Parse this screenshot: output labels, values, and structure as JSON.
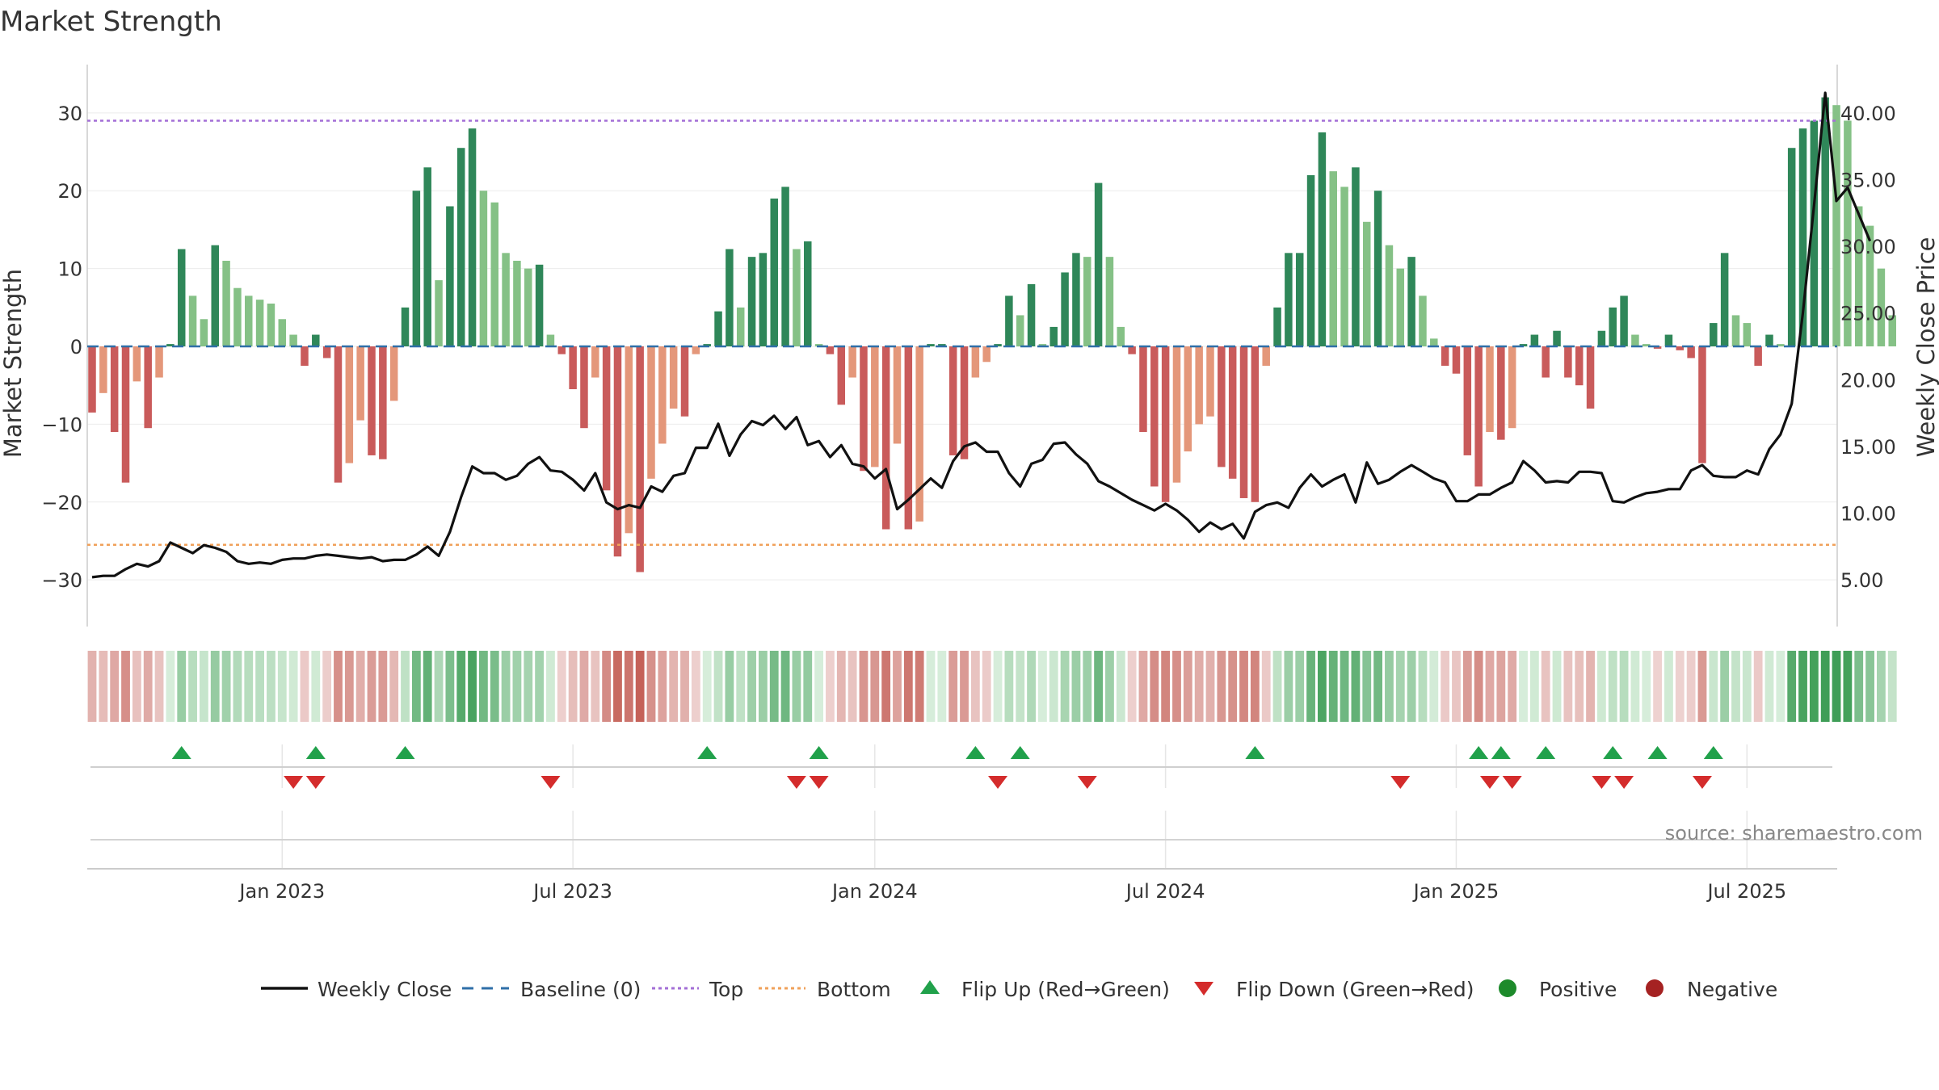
{
  "chart_data": {
    "type": "bar",
    "title": "Market Strength",
    "ylabel": "Market Strength",
    "y2label": "Weekly Close Price",
    "ylim": [
      -36,
      36
    ],
    "y2lim": [
      1.5,
      43.5
    ],
    "yticks": [
      {
        "v": 30,
        "t": "30"
      },
      {
        "v": 20,
        "t": "20"
      },
      {
        "v": 10,
        "t": "10"
      },
      {
        "v": 0,
        "t": "0"
      },
      {
        "v": -10,
        "t": "−10"
      },
      {
        "v": -20,
        "t": "−20"
      },
      {
        "v": -30,
        "t": "−30"
      }
    ],
    "y2ticks": [
      {
        "v": 40,
        "t": "40.00"
      },
      {
        "v": 35,
        "t": "35.00"
      },
      {
        "v": 30,
        "t": "30.00"
      },
      {
        "v": 25,
        "t": "25.00"
      },
      {
        "v": 20,
        "t": "20.00"
      },
      {
        "v": 15,
        "t": "15.00"
      },
      {
        "v": 10,
        "t": "10.00"
      },
      {
        "v": 5,
        "t": "5.00"
      }
    ],
    "xticks": [
      {
        "i": 17,
        "t": "Jan 2023"
      },
      {
        "i": 43,
        "t": "Jul 2023"
      },
      {
        "i": 70,
        "t": "Jan 2024"
      },
      {
        "i": 96,
        "t": "Jul 2024"
      },
      {
        "i": 122,
        "t": "Jan 2025"
      },
      {
        "i": 148,
        "t": "Jul 2025"
      }
    ],
    "top_line": 29,
    "bottom_line": -25.5,
    "strength": [
      -8.5,
      -6,
      -11,
      -17.5,
      -4.5,
      -10.5,
      -4,
      0.3,
      12.5,
      6.5,
      3.5,
      13,
      11,
      7.5,
      6.5,
      6,
      5.5,
      3.5,
      1.5,
      -2.5,
      1.5,
      -1.5,
      -17.5,
      -15,
      -9.5,
      -14,
      -14.5,
      -7,
      5,
      20,
      23,
      8.5,
      18,
      25.5,
      28,
      20,
      18.5,
      12,
      11,
      10,
      10.5,
      1.5,
      -1,
      -5.5,
      -10.5,
      -4,
      -18.5,
      -27,
      -24,
      -29,
      -17,
      -12.5,
      -8,
      -9,
      -1,
      0.3,
      4.5,
      12.5,
      5,
      11.5,
      12,
      19,
      20.5,
      12.5,
      13.5,
      0.3,
      -1,
      -7.5,
      -4,
      -16,
      -15.5,
      -23.5,
      -12.5,
      -23.5,
      -22.5,
      0.3,
      0.3,
      -14,
      -14.5,
      -4,
      -2,
      0.3,
      6.5,
      4,
      8,
      0.3,
      2.5,
      9.5,
      12,
      11.5,
      21,
      11.5,
      2.5,
      -1,
      -11,
      -18,
      -20,
      -17.5,
      -13.5,
      -10,
      -9,
      -15.5,
      -17,
      -19.5,
      -20,
      -2.5,
      5,
      12,
      12,
      22,
      27.5,
      22.5,
      20.5,
      23,
      16,
      20,
      13,
      10,
      11.5,
      6.5,
      1,
      -2.5,
      -3.5,
      -14,
      -18,
      -11,
      -12,
      -10.5,
      0.3,
      1.5,
      -4,
      2,
      -4,
      -5,
      -8,
      2,
      5,
      6.5,
      1.5,
      0.3,
      -0.3,
      1.5,
      -0.5,
      -1.5,
      -15,
      3,
      12,
      4,
      3,
      -2.5,
      1.5,
      0.3,
      25.5,
      28,
      29,
      32,
      31,
      29,
      18,
      15.5,
      10,
      4
    ],
    "close": [
      5.2,
      5.3,
      5.3,
      5.8,
      6.2,
      6.0,
      6.4,
      7.8,
      7.4,
      7.0,
      7.6,
      7.4,
      7.1,
      6.4,
      6.2,
      6.3,
      6.2,
      6.5,
      6.6,
      6.6,
      6.8,
      6.9,
      6.8,
      6.7,
      6.6,
      6.7,
      6.4,
      6.5,
      6.5,
      6.9,
      7.5,
      6.8,
      8.6,
      11.2,
      13.5,
      13.0,
      13.0,
      12.5,
      12.8,
      13.7,
      14.2,
      13.2,
      13.1,
      12.5,
      11.7,
      13.0,
      10.8,
      10.3,
      10.6,
      10.4,
      12.0,
      11.6,
      12.8,
      13.0,
      14.9,
      14.9,
      16.7,
      14.3,
      15.9,
      16.9,
      16.6,
      17.3,
      16.3,
      17.2,
      15.1,
      15.4,
      14.2,
      15.1,
      13.7,
      13.5,
      12.6,
      13.3,
      10.3,
      11.0,
      11.8,
      12.6,
      11.9,
      13.9,
      15.0,
      15.3,
      14.6,
      14.6,
      13.0,
      12.0,
      13.7,
      14.0,
      15.2,
      15.3,
      14.4,
      13.7,
      12.4,
      12.0,
      11.5,
      11.0,
      10.6,
      10.2,
      10.7,
      10.2,
      9.5,
      8.6,
      9.3,
      8.8,
      9.2,
      8.1,
      10.1,
      10.6,
      10.8,
      10.4,
      11.9,
      12.9,
      12.0,
      12.5,
      12.9,
      10.8,
      13.8,
      12.2,
      12.5,
      13.1,
      13.6,
      13.1,
      12.6,
      12.3,
      10.9,
      10.9,
      11.4,
      11.4,
      11.9,
      12.3,
      13.9,
      13.2,
      12.3,
      12.4,
      12.3,
      13.1,
      13.1,
      13.0,
      10.9,
      10.8,
      11.2,
      11.5,
      11.6,
      11.8,
      11.8,
      13.2,
      13.6,
      12.8,
      12.7,
      12.7,
      13.2,
      12.9,
      14.8,
      15.9,
      18.2,
      25.0,
      33.1,
      41.5,
      33.4,
      34.4,
      32.4,
      30.4
    ]
  },
  "flip_up_indices": [
    8,
    20,
    28,
    55,
    65,
    79,
    83,
    104,
    124,
    126,
    130,
    136,
    140,
    145
  ],
  "flip_down_indices": [
    18,
    20,
    41,
    63,
    65,
    81,
    89,
    117,
    125,
    127,
    135,
    137,
    144
  ],
  "source_text": "source: sharemaestro.com",
  "legend": {
    "weekly_close": "Weekly Close",
    "baseline": "Baseline (0)",
    "top": "Top",
    "bottom": "Bottom",
    "flip_up": "Flip Up (Red→Green)",
    "flip_down": "Flip Down (Green→Red)",
    "positive": "Positive",
    "negative": "Negative"
  },
  "colors": {
    "pos_dark": "#2f8759",
    "pos_light": "#85c186",
    "neg_dark": "#c95b5b",
    "neg_light": "#e4977a",
    "close_line": "#111111",
    "top_line": "#a36fd6",
    "bottom_line": "#f0a15a",
    "baseline": "#2f6fa8",
    "flip_up": "#21a14b",
    "flip_down": "#d42c2c",
    "positive_dot": "#1d8a2b",
    "negative_dot": "#a52222"
  }
}
